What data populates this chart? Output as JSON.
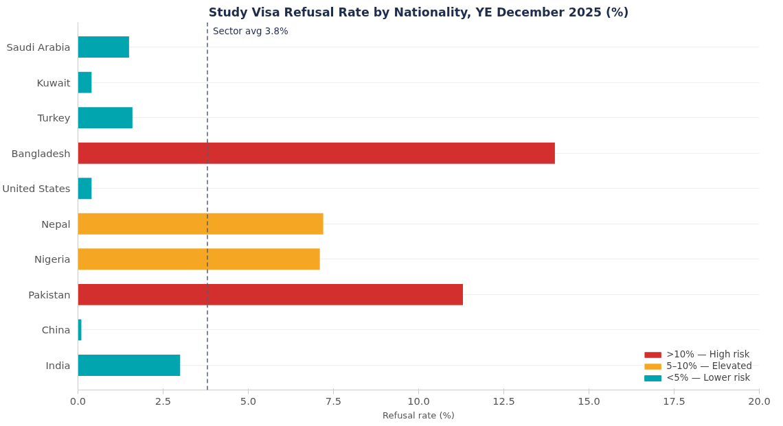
{
  "chart_data": {
    "type": "bar",
    "orientation": "horizontal",
    "title": "Study Visa Refusal Rate by Nationality, YE December 2025 (%)",
    "xlabel": "Refusal rate (%)",
    "categories": [
      "Saudi Arabia",
      "Kuwait",
      "Turkey",
      "Bangladesh",
      "United States",
      "Nepal",
      "Nigeria",
      "Pakistan",
      "China",
      "India"
    ],
    "series": [
      {
        "name": ">10% — High risk",
        "color": "#d32f2f",
        "values": [
          null,
          null,
          null,
          14.0,
          null,
          null,
          null,
          11.3,
          null,
          null
        ]
      },
      {
        "name": "5–10% — Elevated",
        "color": "#f5a623",
        "values": [
          null,
          null,
          null,
          null,
          null,
          7.2,
          7.1,
          null,
          null,
          null
        ]
      },
      {
        "name": "<5% — Lower risk",
        "color": "#00a5b0",
        "values": [
          1.5,
          0.4,
          1.6,
          null,
          0.4,
          null,
          null,
          null,
          0.1,
          3.0
        ]
      }
    ],
    "xlim": [
      0,
      20
    ],
    "xticks": [
      {
        "value": 0,
        "label": "0.0"
      },
      {
        "value": 2.5,
        "label": "2.5"
      },
      {
        "value": 5,
        "label": "5.0"
      },
      {
        "value": 7.5,
        "label": "7.5"
      },
      {
        "value": 10,
        "label": "10.0"
      },
      {
        "value": 12.5,
        "label": "12.5"
      },
      {
        "value": 15,
        "label": "15.0"
      },
      {
        "value": 17.5,
        "label": "17.5"
      },
      {
        "value": 20,
        "label": "20.0"
      }
    ],
    "ref_lines": [
      {
        "axis": "x",
        "value": 3.8,
        "label": "Sector avg 3.8%",
        "color": "#555f6d",
        "line_style": "dashed"
      }
    ],
    "grid": "y",
    "legend": "bottom right"
  }
}
